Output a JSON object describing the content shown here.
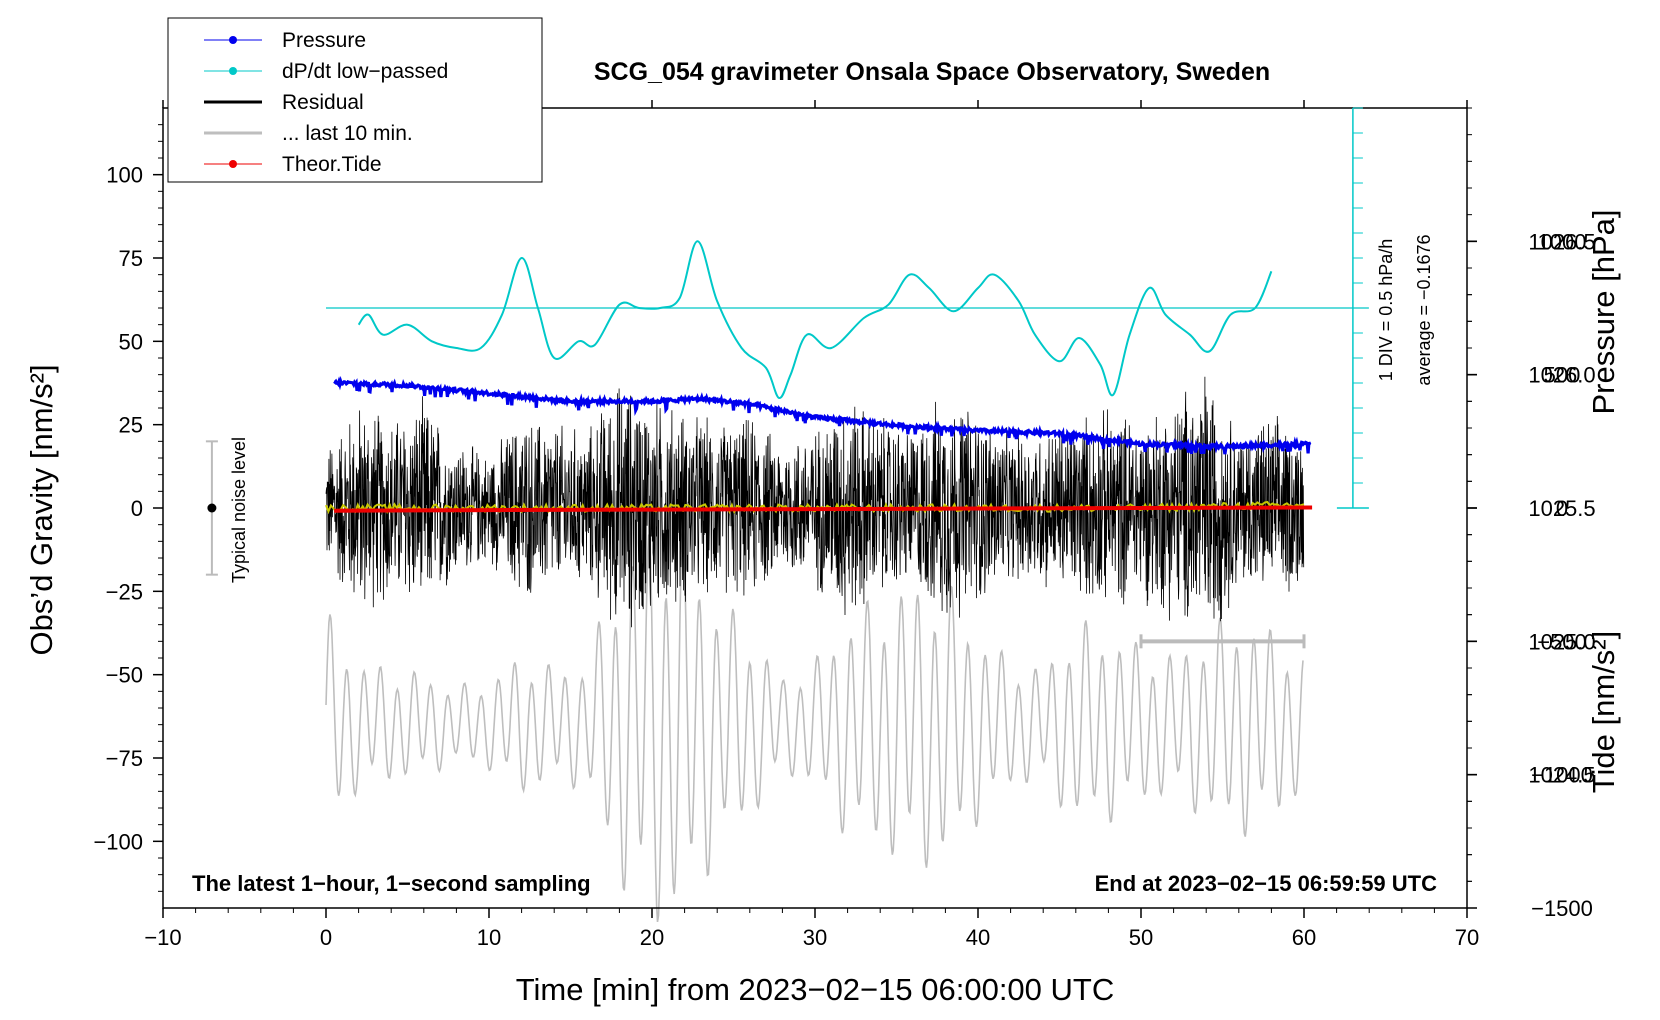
{
  "chart_data": {
    "type": "line",
    "title": "SCG_054 gravimeter Onsala Space Observatory, Sweden",
    "xlabel": "Time [min] from 2023−02−15 06:00:00 UTC",
    "ylabel": "Obs’d Gravity [nm/s²]",
    "ylabel_right_upper": "Pressure [hPa]",
    "ylabel_right_lower": "Tide [nm/s²]",
    "xlim": [
      -10,
      70
    ],
    "ylim": [
      -120,
      120
    ],
    "pressure_lim": [
      1024.0,
      1027.0
    ],
    "tide_lim": [
      -1500,
      1500
    ],
    "x_ticks": [
      "−10",
      "0",
      "10",
      "20",
      "30",
      "40",
      "50",
      "60",
      "70"
    ],
    "y_ticks": [
      "100",
      "75",
      "50",
      "25",
      "0",
      "−25",
      "−50",
      "−75",
      "−100"
    ],
    "pressure_ticks": [
      "1026.5",
      "1026.0",
      "1025.5",
      "1025.0",
      "1024.5"
    ],
    "tide_ticks": [
      "1000",
      "500",
      "0",
      "−500",
      "−1000",
      "−1500"
    ],
    "legend": {
      "placement": "top-left",
      "entries": [
        {
          "name": "Pressure",
          "color": "#0000ee",
          "marker": true
        },
        {
          "name": "dP/dt low−passed",
          "color": "#00c8c8",
          "marker": true
        },
        {
          "name": "Residual",
          "color": "#000000",
          "marker": false
        },
        {
          "name": "... last 10 min.",
          "color": "#bebebe",
          "marker": false
        },
        {
          "name": "Theor.Tide",
          "color": "#ee0000",
          "marker": true
        }
      ]
    },
    "annotations": {
      "bottom_left": "The latest 1−hour, 1−second sampling",
      "bottom_right": "End at 2023−02−15 06:59:59 UTC",
      "noise_label": "Typical noise level",
      "noise_level": 20,
      "noise_x": -7,
      "dpdt_scale": "1 DIV = 0.5 hPa/h",
      "dpdt_average": "average = −0.1676",
      "dpdt_scale_x": 63,
      "last10_bar_x": [
        50,
        60
      ],
      "last10_bar_y": -40
    },
    "series": [
      {
        "name": "Pressure",
        "color": "#0000ee",
        "unit": "hPa",
        "x": [
          0.5,
          5,
          10,
          15,
          20,
          23,
          26,
          30,
          35,
          40,
          45,
          50,
          55,
          60
        ],
        "values": [
          1025.97,
          1025.96,
          1025.93,
          1025.9,
          1025.9,
          1025.91,
          1025.89,
          1025.84,
          1025.81,
          1025.79,
          1025.78,
          1025.74,
          1025.73,
          1025.74
        ]
      },
      {
        "name": "dP/dt low−passed",
        "color": "#00c8c8",
        "unit": "nm/s² (plot units)",
        "baseline": 60,
        "x": [
          2,
          2.6,
          3.5,
          5,
          6.5,
          8,
          9.5,
          10.8,
          12,
          13,
          14,
          15.5,
          16.5,
          18,
          19.2,
          20.5,
          21.7,
          22.8,
          24,
          25.5,
          27,
          27.8,
          28.5,
          29.5,
          31,
          33,
          34.5,
          35.8,
          37,
          38.5,
          40,
          41,
          42.5,
          43.5,
          45,
          46.2,
          47.5,
          48.3,
          49.3,
          50.5,
          51.5,
          53,
          54.2,
          55.5,
          57,
          58
        ],
        "values": [
          55,
          58,
          52,
          55,
          50,
          48,
          48,
          58,
          75,
          60,
          45,
          50,
          49,
          61,
          60,
          60,
          63,
          80,
          62,
          48,
          42,
          33,
          40,
          52,
          48,
          57,
          61,
          70,
          66,
          59,
          66,
          70,
          62,
          52,
          44,
          51,
          43,
          34,
          52,
          66,
          58,
          52,
          47,
          58,
          60,
          71
        ]
      },
      {
        "name": "Residual",
        "color": "#000000",
        "unit": "nm/s²",
        "x": [
          0,
          2,
          4,
          6,
          8,
          10,
          12,
          14,
          16,
          18,
          20,
          22,
          24,
          26,
          28,
          30,
          32,
          34,
          36,
          38,
          40,
          42,
          44,
          46,
          48,
          50,
          52,
          54,
          56,
          58,
          60
        ],
        "envelope": [
          20,
          35,
          30,
          35,
          22,
          18,
          30,
          28,
          25,
          42,
          36,
          32,
          28,
          30,
          22,
          26,
          38,
          30,
          26,
          38,
          32,
          24,
          26,
          30,
          32,
          30,
          36,
          46,
          26,
          30,
          26
        ]
      },
      {
        "name": "Residual low−passed",
        "color": "#c8c800",
        "unit": "nm/s²",
        "x": [
          0,
          10,
          20,
          30,
          40,
          50,
          60
        ],
        "values": [
          0,
          0,
          0,
          0,
          0,
          0,
          1
        ]
      },
      {
        "name": "... last 10 min.",
        "color": "#bebebe",
        "unit": "nm/s² (plot units)",
        "x": [
          0,
          2,
          4,
          6,
          8,
          10,
          12,
          14,
          16,
          18,
          20,
          22,
          24,
          26,
          28,
          30,
          32,
          34,
          36,
          38,
          40,
          42,
          44,
          46,
          48,
          50,
          52,
          54,
          56,
          58,
          60
        ],
        "envelope": [
          35,
          20,
          18,
          16,
          12,
          14,
          22,
          18,
          20,
          50,
          65,
          60,
          40,
          30,
          15,
          20,
          35,
          40,
          45,
          45,
          30,
          20,
          18,
          32,
          30,
          25,
          22,
          30,
          35,
          30,
          22
        ]
      },
      {
        "name": "Theor.Tide",
        "color": "#ee0000",
        "unit": "nm/s²",
        "x": [
          0.5,
          10,
          20,
          30,
          40,
          50,
          60.5
        ],
        "values": [
          -10,
          -8,
          -6,
          -4,
          -2,
          0,
          2
        ]
      }
    ]
  }
}
